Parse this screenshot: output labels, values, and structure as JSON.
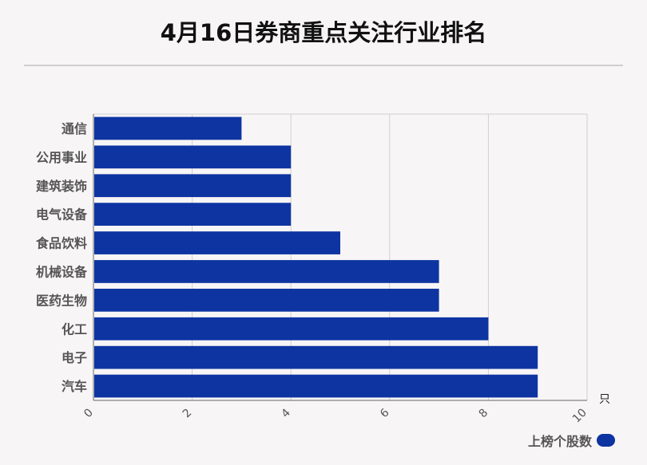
{
  "title": "4月16日券商重点关注行业排名",
  "colors": {
    "bar": "#0d34a1",
    "grid": "#d0d0d0",
    "axis": "#666666"
  },
  "chart_data": {
    "type": "bar",
    "orientation": "horizontal",
    "title": "4月16日券商重点关注行业排名",
    "categories": [
      "通信",
      "公用事业",
      "建筑装饰",
      "电气设备",
      "食品饮料",
      "机械设备",
      "医药生物",
      "化工",
      "电子",
      "汽车"
    ],
    "series": [
      {
        "name": "上榜个股数",
        "values": [
          3,
          4,
          4,
          4,
          5,
          7,
          7,
          8,
          9,
          9
        ]
      }
    ],
    "xlim": [
      0,
      10
    ],
    "xticks": [
      "0",
      "2",
      "4",
      "6",
      "8",
      "10"
    ],
    "xunit": "只",
    "grid": true,
    "legend": "bottom-right"
  }
}
